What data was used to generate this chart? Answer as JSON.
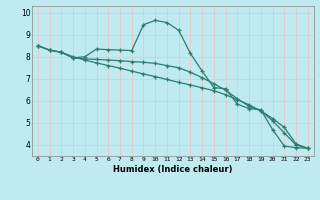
{
  "xlabel": "Humidex (Indice chaleur)",
  "background_color": "#beeaf0",
  "grid_color": "#e8c8c8",
  "line_color": "#2e7d6e",
  "xlim": [
    -0.5,
    23.5
  ],
  "ylim": [
    3.5,
    10.3
  ],
  "xticks": [
    0,
    1,
    2,
    3,
    4,
    5,
    6,
    7,
    8,
    9,
    10,
    11,
    12,
    13,
    14,
    15,
    16,
    17,
    18,
    19,
    20,
    21,
    22,
    23
  ],
  "yticks": [
    4,
    5,
    6,
    7,
    8,
    9,
    10
  ],
  "series1_x": [
    0,
    1,
    2,
    3,
    4,
    5,
    6,
    7,
    8,
    9,
    10,
    11,
    12,
    13,
    14,
    15,
    16,
    17,
    18,
    19,
    20,
    21,
    22,
    23
  ],
  "series1_y": [
    8.5,
    8.3,
    8.2,
    8.0,
    7.85,
    7.72,
    7.6,
    7.48,
    7.35,
    7.22,
    7.1,
    6.97,
    6.84,
    6.72,
    6.59,
    6.46,
    6.28,
    6.05,
    5.82,
    5.55,
    5.2,
    4.8,
    4.05,
    3.85
  ],
  "series2_x": [
    0,
    1,
    2,
    3,
    4,
    5,
    6,
    7,
    8,
    9,
    10,
    11,
    12,
    13,
    14,
    15,
    16,
    17,
    18,
    19,
    20,
    21,
    22,
    23
  ],
  "series2_y": [
    8.5,
    8.3,
    8.2,
    7.95,
    8.0,
    8.35,
    8.32,
    8.3,
    8.28,
    9.45,
    9.65,
    9.55,
    9.2,
    8.15,
    7.35,
    6.6,
    6.55,
    5.85,
    5.65,
    5.6,
    4.7,
    3.95,
    3.88,
    3.85
  ],
  "series3_x": [
    0,
    1,
    2,
    3,
    4,
    5,
    6,
    7,
    8,
    9,
    10,
    11,
    12,
    13,
    14,
    15,
    16,
    17,
    18,
    19,
    20,
    21,
    22,
    23
  ],
  "series3_y": [
    8.5,
    8.3,
    8.2,
    7.95,
    7.9,
    7.88,
    7.85,
    7.82,
    7.78,
    7.75,
    7.7,
    7.6,
    7.5,
    7.3,
    7.05,
    6.78,
    6.48,
    6.1,
    5.75,
    5.55,
    5.1,
    4.55,
    4.0,
    3.85
  ]
}
